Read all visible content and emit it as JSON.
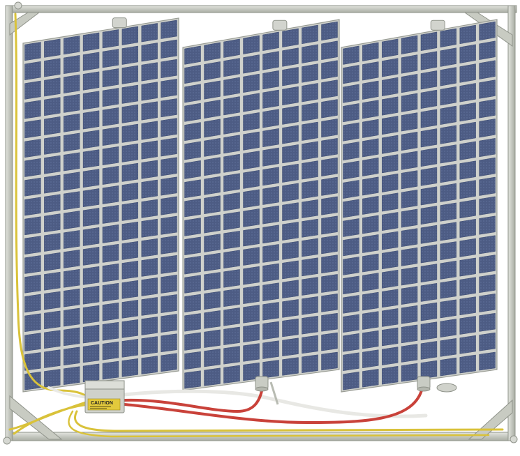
{
  "scene": {
    "subject": "solar-panel-array-on-frame",
    "panel_count": 3,
    "cell_grid": {
      "columns": 8,
      "rows": 18
    }
  },
  "junction_box": {
    "label_text": "CAUTION"
  },
  "colors": {
    "frame": "#c9ccc4",
    "frame_dark": "#9ea298",
    "panel_cell": "#4f5f86",
    "panel_cell_dark": "#3d4b70",
    "panel_backsheet": "#cfd1cc",
    "wire_yellow": "#d9c23a",
    "wire_red": "#c9423a",
    "wire_white": "#e6e6e2",
    "label_yellow": "#e3c93c"
  }
}
